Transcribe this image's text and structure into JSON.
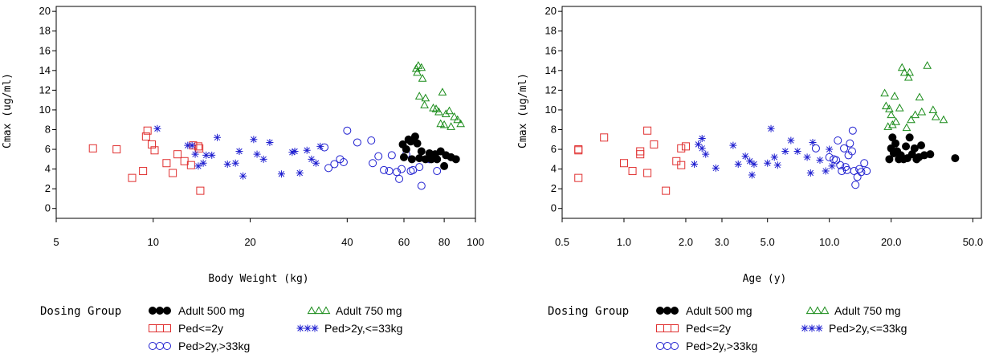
{
  "legend": {
    "title": "Dosing Group",
    "entries": [
      {
        "key": "adult500",
        "label": "Adult 500 mg",
        "symbol": "filled-circle",
        "color": "#000000"
      },
      {
        "key": "adult750",
        "label": "Adult 750 mg",
        "symbol": "triangle",
        "color": "#1a8c1a"
      },
      {
        "key": "pedLe2",
        "label": "Ped<=2y",
        "symbol": "square",
        "color": "#e03030"
      },
      {
        "key": "pedLe33",
        "label": "Ped>2y,<=33kg",
        "symbol": "star",
        "color": "#2020d0"
      },
      {
        "key": "pedGt33",
        "label": "Ped>2y,>33kg",
        "symbol": "circle",
        "color": "#2020d0"
      }
    ]
  },
  "chart_data": [
    {
      "type": "scatter",
      "xlabel": "Body Weight (kg)",
      "ylabel": "Cmax (ug/ml)",
      "xscale": "log",
      "xlim": [
        5,
        100
      ],
      "ylim": [
        -1,
        20.5
      ],
      "xticks": [
        5,
        10,
        20,
        40,
        60,
        80,
        100
      ],
      "xtick_labels": [
        "5",
        "10",
        "20",
        "40",
        "60",
        "80",
        "100"
      ],
      "yticks": [
        0,
        2,
        4,
        6,
        8,
        10,
        12,
        14,
        16,
        18,
        20
      ],
      "series": [
        {
          "key": "pedLe2",
          "name": "Ped<=2y",
          "points": [
            [
              6.5,
              6.1
            ],
            [
              7.7,
              6.0
            ],
            [
              8.6,
              3.1
            ],
            [
              9.3,
              3.8
            ],
            [
              9.5,
              7.3
            ],
            [
              9.6,
              7.9
            ],
            [
              9.9,
              6.5
            ],
            [
              10.1,
              5.9
            ],
            [
              11.0,
              4.6
            ],
            [
              11.5,
              3.6
            ],
            [
              11.9,
              5.5
            ],
            [
              12.5,
              4.8
            ],
            [
              13.1,
              4.4
            ],
            [
              13.3,
              6.4
            ],
            [
              13.8,
              6.3
            ],
            [
              13.9,
              6.1
            ],
            [
              14.0,
              1.8
            ]
          ]
        },
        {
          "key": "pedLe33",
          "name": "Ped>2y,<=33kg",
          "points": [
            [
              10.3,
              8.1
            ],
            [
              12.8,
              6.4
            ],
            [
              13.2,
              6.4
            ],
            [
              13.5,
              5.5
            ],
            [
              13.8,
              4.3
            ],
            [
              14.3,
              4.6
            ],
            [
              14.6,
              5.4
            ],
            [
              15.2,
              5.4
            ],
            [
              15.8,
              7.2
            ],
            [
              17.0,
              4.5
            ],
            [
              18.0,
              4.6
            ],
            [
              18.5,
              5.8
            ],
            [
              19.0,
              3.3
            ],
            [
              20.5,
              7.0
            ],
            [
              21.0,
              5.5
            ],
            [
              22.0,
              5.0
            ],
            [
              23.0,
              6.7
            ],
            [
              25.0,
              3.5
            ],
            [
              27.0,
              5.7
            ],
            [
              27.5,
              5.8
            ],
            [
              28.5,
              3.6
            ],
            [
              30.0,
              5.9
            ],
            [
              31.0,
              5.0
            ],
            [
              32.0,
              4.6
            ],
            [
              33.0,
              6.3
            ]
          ]
        },
        {
          "key": "pedGt33",
          "name": "Ped>2y,>33kg",
          "points": [
            [
              34.0,
              6.2
            ],
            [
              35.0,
              4.1
            ],
            [
              36.5,
              4.5
            ],
            [
              38.0,
              5.0
            ],
            [
              39.0,
              4.7
            ],
            [
              40.0,
              7.9
            ],
            [
              43.0,
              6.7
            ],
            [
              47.5,
              6.9
            ],
            [
              48.0,
              4.6
            ],
            [
              50.0,
              5.3
            ],
            [
              52.0,
              3.9
            ],
            [
              54.0,
              3.8
            ],
            [
              55.0,
              5.4
            ],
            [
              57.0,
              3.7
            ],
            [
              58.0,
              3.0
            ],
            [
              59.0,
              4.0
            ],
            [
              61.0,
              5.5
            ],
            [
              63.0,
              3.8
            ],
            [
              64.0,
              3.9
            ],
            [
              67.0,
              4.2
            ],
            [
              68.0,
              2.3
            ],
            [
              72.0,
              5.0
            ],
            [
              76.0,
              3.8
            ]
          ]
        },
        {
          "key": "adult500",
          "name": "Adult 500 mg",
          "points": [
            [
              59.5,
              6.5
            ],
            [
              60.0,
              5.2
            ],
            [
              61.0,
              6.0
            ],
            [
              62.0,
              7.0
            ],
            [
              63.0,
              6.8
            ],
            [
              63.5,
              5.0
            ],
            [
              65.0,
              7.3
            ],
            [
              66.0,
              6.6
            ],
            [
              67.0,
              5.1
            ],
            [
              68.0,
              5.8
            ],
            [
              70.0,
              5.0
            ],
            [
              72.0,
              5.6
            ],
            [
              73.0,
              5.0
            ],
            [
              75.0,
              5.5
            ],
            [
              76.0,
              5.0
            ],
            [
              78.0,
              5.8
            ],
            [
              80.0,
              4.3
            ],
            [
              81.0,
              5.4
            ],
            [
              84.0,
              5.2
            ],
            [
              87.0,
              5.0
            ]
          ]
        },
        {
          "key": "adult750",
          "name": "Adult 750 mg",
          "points": [
            [
              65.5,
              14.2
            ],
            [
              66.0,
              13.8
            ],
            [
              66.5,
              14.5
            ],
            [
              67.0,
              11.4
            ],
            [
              68.0,
              14.3
            ],
            [
              68.5,
              13.2
            ],
            [
              69.5,
              10.5
            ],
            [
              70.0,
              11.2
            ],
            [
              74.0,
              10.2
            ],
            [
              75.5,
              10.1
            ],
            [
              77.0,
              9.8
            ],
            [
              78.0,
              8.6
            ],
            [
              79.0,
              11.8
            ],
            [
              80.0,
              8.5
            ],
            [
              81.0,
              9.6
            ],
            [
              83.0,
              9.9
            ],
            [
              84.0,
              8.3
            ],
            [
              86.0,
              9.3
            ],
            [
              88.0,
              9.0
            ],
            [
              90.0,
              8.6
            ]
          ]
        }
      ]
    },
    {
      "type": "scatter",
      "xlabel": "Age (y)",
      "ylabel": "Cmax (ug/ml)",
      "xscale": "log",
      "xlim": [
        0.5,
        55
      ],
      "ylim": [
        -1,
        20.5
      ],
      "xticks": [
        0.5,
        1.0,
        2.0,
        3.0,
        5.0,
        10.0,
        20.0,
        50.0
      ],
      "xtick_labels": [
        "0.5",
        "1.0",
        "2.0",
        "3.0",
        "5.0",
        "10.0",
        "20.0",
        "50.0"
      ],
      "yticks": [
        0,
        2,
        4,
        6,
        8,
        10,
        12,
        14,
        16,
        18,
        20
      ],
      "series": [
        {
          "key": "pedLe2",
          "name": "Ped<=2y",
          "points": [
            [
              0.6,
              6.0
            ],
            [
              0.6,
              5.9
            ],
            [
              0.6,
              3.1
            ],
            [
              0.8,
              7.2
            ],
            [
              1.0,
              4.6
            ],
            [
              1.1,
              3.8
            ],
            [
              1.2,
              5.8
            ],
            [
              1.2,
              5.5
            ],
            [
              1.3,
              7.9
            ],
            [
              1.3,
              3.6
            ],
            [
              1.4,
              6.5
            ],
            [
              1.6,
              1.8
            ],
            [
              1.8,
              4.8
            ],
            [
              1.9,
              4.4
            ],
            [
              1.9,
              6.1
            ],
            [
              2.0,
              6.3
            ]
          ]
        },
        {
          "key": "pedLe33",
          "name": "Ped>2y,<=33kg",
          "points": [
            [
              2.2,
              4.5
            ],
            [
              2.3,
              6.5
            ],
            [
              2.4,
              7.1
            ],
            [
              2.4,
              6.1
            ],
            [
              2.5,
              5.5
            ],
            [
              2.8,
              4.1
            ],
            [
              3.4,
              6.4
            ],
            [
              3.6,
              4.5
            ],
            [
              3.9,
              5.3
            ],
            [
              4.1,
              4.8
            ],
            [
              4.2,
              3.4
            ],
            [
              4.3,
              4.5
            ],
            [
              5.0,
              4.6
            ],
            [
              5.2,
              8.1
            ],
            [
              5.4,
              5.2
            ],
            [
              5.6,
              4.4
            ],
            [
              6.1,
              5.8
            ],
            [
              6.5,
              6.9
            ],
            [
              7.0,
              5.8
            ],
            [
              7.8,
              5.2
            ],
            [
              8.1,
              3.6
            ],
            [
              8.3,
              6.7
            ],
            [
              9.0,
              4.9
            ],
            [
              9.6,
              3.8
            ],
            [
              10.0,
              6.0
            ],
            [
              10.3,
              4.3
            ]
          ]
        },
        {
          "key": "pedGt33",
          "name": "Ped>2y,>33kg",
          "points": [
            [
              8.6,
              6.1
            ],
            [
              10.0,
              5.2
            ],
            [
              10.5,
              5.0
            ],
            [
              10.8,
              4.9
            ],
            [
              11.0,
              6.9
            ],
            [
              11.3,
              4.4
            ],
            [
              11.5,
              3.8
            ],
            [
              11.8,
              6.1
            ],
            [
              12.0,
              4.2
            ],
            [
              12.2,
              3.9
            ],
            [
              12.4,
              5.4
            ],
            [
              12.6,
              6.6
            ],
            [
              12.9,
              5.8
            ],
            [
              13.0,
              7.9
            ],
            [
              13.2,
              3.8
            ],
            [
              13.4,
              2.4
            ],
            [
              13.7,
              3.2
            ],
            [
              14.0,
              4.0
            ],
            [
              14.3,
              3.7
            ],
            [
              14.8,
              4.6
            ],
            [
              15.2,
              3.8
            ]
          ]
        },
        {
          "key": "adult500",
          "name": "Adult 500 mg",
          "points": [
            [
              19.6,
              5.0
            ],
            [
              20.0,
              6.1
            ],
            [
              20.3,
              7.2
            ],
            [
              20.6,
              5.6
            ],
            [
              21.0,
              6.6
            ],
            [
              21.4,
              5.8
            ],
            [
              21.8,
              5.0
            ],
            [
              22.3,
              5.4
            ],
            [
              23.0,
              5.0
            ],
            [
              23.6,
              6.3
            ],
            [
              24.0,
              5.1
            ],
            [
              24.6,
              7.2
            ],
            [
              25.3,
              5.5
            ],
            [
              26.0,
              6.1
            ],
            [
              26.6,
              5.0
            ],
            [
              27.3,
              5.2
            ],
            [
              28.0,
              6.4
            ],
            [
              29.0,
              5.4
            ],
            [
              31.0,
              5.5
            ],
            [
              41.0,
              5.1
            ]
          ]
        },
        {
          "key": "adult750",
          "name": "Adult 750 mg",
          "points": [
            [
              18.6,
              11.7
            ],
            [
              18.9,
              10.4
            ],
            [
              19.3,
              8.3
            ],
            [
              19.6,
              10.1
            ],
            [
              20.0,
              9.5
            ],
            [
              20.3,
              8.5
            ],
            [
              20.8,
              11.4
            ],
            [
              21.1,
              8.8
            ],
            [
              22.0,
              10.2
            ],
            [
              22.6,
              14.3
            ],
            [
              23.2,
              13.8
            ],
            [
              23.8,
              8.2
            ],
            [
              24.3,
              13.3
            ],
            [
              24.6,
              13.8
            ],
            [
              25.0,
              9.0
            ],
            [
              26.2,
              9.5
            ],
            [
              27.5,
              11.3
            ],
            [
              28.2,
              9.8
            ],
            [
              30.0,
              14.5
            ],
            [
              32.0,
              10.0
            ],
            [
              33.0,
              9.3
            ],
            [
              36.0,
              9.0
            ]
          ]
        }
      ]
    }
  ]
}
